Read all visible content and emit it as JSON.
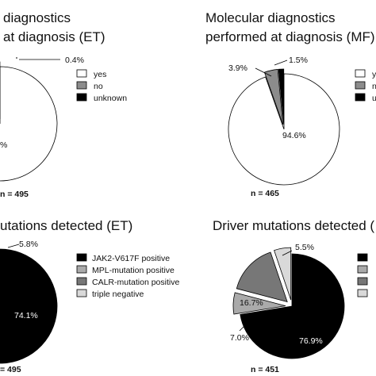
{
  "chart_data": [
    {
      "type": "pie",
      "title": [
        "diagnostics",
        "at diagnosis (ET)"
      ],
      "n_label": "n = 495",
      "legend": [
        "yes",
        "no",
        "unknown"
      ],
      "slices": [
        {
          "name": "yes",
          "value": 96.0,
          "color": "#ffffff",
          "label": "%"
        },
        {
          "name": "no",
          "value": 3.6,
          "color": "#8c8c8c",
          "label": ""
        },
        {
          "name": "unknown",
          "value": 0.4,
          "color": "#000000",
          "label": "0.4%"
        }
      ]
    },
    {
      "type": "pie",
      "title": [
        "Molecular diagnostics",
        "performed at diagnosis (MF)"
      ],
      "n_label": "n = 465",
      "legend": [
        "y",
        "n",
        "u"
      ],
      "slices": [
        {
          "name": "yes",
          "value": 94.6,
          "color": "#ffffff",
          "label": "94.6%"
        },
        {
          "name": "no",
          "value": 3.9,
          "color": "#8c8c8c",
          "label": "3.9%"
        },
        {
          "name": "unknown",
          "value": 1.5,
          "color": "#000000",
          "label": "1.5%"
        }
      ]
    },
    {
      "type": "pie",
      "title": [
        "utations detected (ET)"
      ],
      "n_label": "= 495",
      "legend": [
        "JAK2-V617F positive",
        "MPL-mutation positive",
        "CALR-mutation positive",
        "triple negative"
      ],
      "slices": [
        {
          "name": "JAK2-V617F positive",
          "value": 74.1,
          "color": "#000000",
          "label": "74.1%"
        },
        {
          "name": "MPL-mutation positive",
          "value": 4.0,
          "color": "#aaaaaa",
          "label": ""
        },
        {
          "name": "CALR-mutation positive",
          "value": 16.1,
          "color": "#777777",
          "label": ""
        },
        {
          "name": "triple negative",
          "value": 5.8,
          "color": "#d9d9d9",
          "label": "5.8%"
        }
      ]
    },
    {
      "type": "pie",
      "title": [
        "Driver mutations detected ("
      ],
      "n_label": "n = 451",
      "legend": [
        "",
        "",
        "",
        ""
      ],
      "slices": [
        {
          "name": "JAK2-V617F positive",
          "value": 76.9,
          "color": "#000000",
          "label": "76.9%"
        },
        {
          "name": "MPL-mutation positive",
          "value": 7.0,
          "color": "#aaaaaa",
          "label": "7.0%"
        },
        {
          "name": "CALR-mutation positive",
          "value": 16.7,
          "color": "#777777",
          "label": "16.7%"
        },
        {
          "name": "triple negative",
          "value": 5.5,
          "color": "#d9d9d9",
          "label": "5.5%"
        }
      ]
    }
  ]
}
